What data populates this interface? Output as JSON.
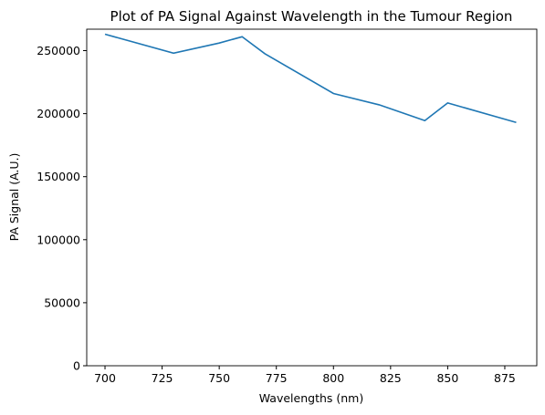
{
  "chart_data": {
    "type": "line",
    "title": "Plot of PA Signal Against Wavelength in the Tumour Region",
    "x_label": "Wavelengths (nm)",
    "y_label": "PA Signal (A.U.)",
    "x": [
      700,
      730,
      750,
      760,
      770,
      800,
      820,
      840,
      850,
      880
    ],
    "series": [
      {
        "color": "#1f77b4",
        "values": [
          263000,
          248000,
          256000,
          261000,
          247500,
          216000,
          207000,
          194500,
          208500,
          193000
        ]
      }
    ],
    "xlim": [
      692,
      889
    ],
    "xticks": [
      700,
      725,
      750,
      775,
      800,
      825,
      850,
      875
    ],
    "ylim": [
      0,
      267000
    ],
    "yticks": [
      0,
      50000,
      100000,
      150000,
      200000,
      250000
    ],
    "grid": false
  }
}
